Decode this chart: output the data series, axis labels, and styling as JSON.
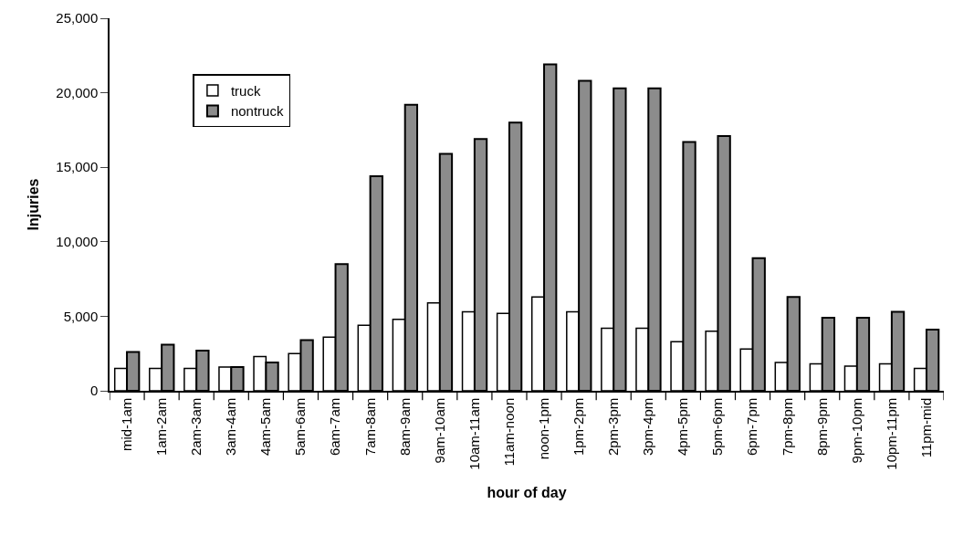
{
  "chart_data": {
    "type": "bar",
    "xlabel": "hour of day",
    "ylabel": "Injuries",
    "categories": [
      "mid-1am",
      "1am-2am",
      "2am-3am",
      "3am-4am",
      "4am-5am",
      "5am-6am",
      "6am-7am",
      "7am-8am",
      "8am-9am",
      "9am-10am",
      "10am-11am",
      "11am-noon",
      "noon-1pm",
      "1pm-2pm",
      "2pm-3pm",
      "3pm-4pm",
      "4pm-5pm",
      "5pm-6pm",
      "6pm-7pm",
      "7pm-8pm",
      "8pm-9pm",
      "9pm-10pm",
      "10pm-11pm",
      "11pm-mid"
    ],
    "series": [
      {
        "name": "truck",
        "color": "#ffffff",
        "values": [
          1500,
          1500,
          1500,
          1600,
          2300,
          2500,
          3600,
          4400,
          4800,
          5900,
          5300,
          5200,
          6300,
          5300,
          4200,
          4200,
          3300,
          4000,
          2800,
          1900,
          1800,
          1650,
          1800,
          1500
        ]
      },
      {
        "name": "nontruck",
        "color": "#8c8c8c",
        "values": [
          2600,
          3100,
          2700,
          1600,
          1900,
          3400,
          8500,
          14400,
          19200,
          15900,
          16900,
          18000,
          21900,
          20800,
          20300,
          20300,
          16700,
          17100,
          8900,
          6300,
          4900,
          4900,
          5300,
          4100
        ]
      }
    ],
    "ylim": [
      0,
      25000
    ],
    "yticks": [
      {
        "value": 0,
        "label": "0"
      },
      {
        "value": 5000,
        "label": "5,000"
      },
      {
        "value": 10000,
        "label": "10,000"
      },
      {
        "value": 15000,
        "label": "15,000"
      },
      {
        "value": 20000,
        "label": "20,000"
      },
      {
        "value": 25000,
        "label": "25,000"
      }
    ],
    "grid": false,
    "legend": "top left"
  }
}
